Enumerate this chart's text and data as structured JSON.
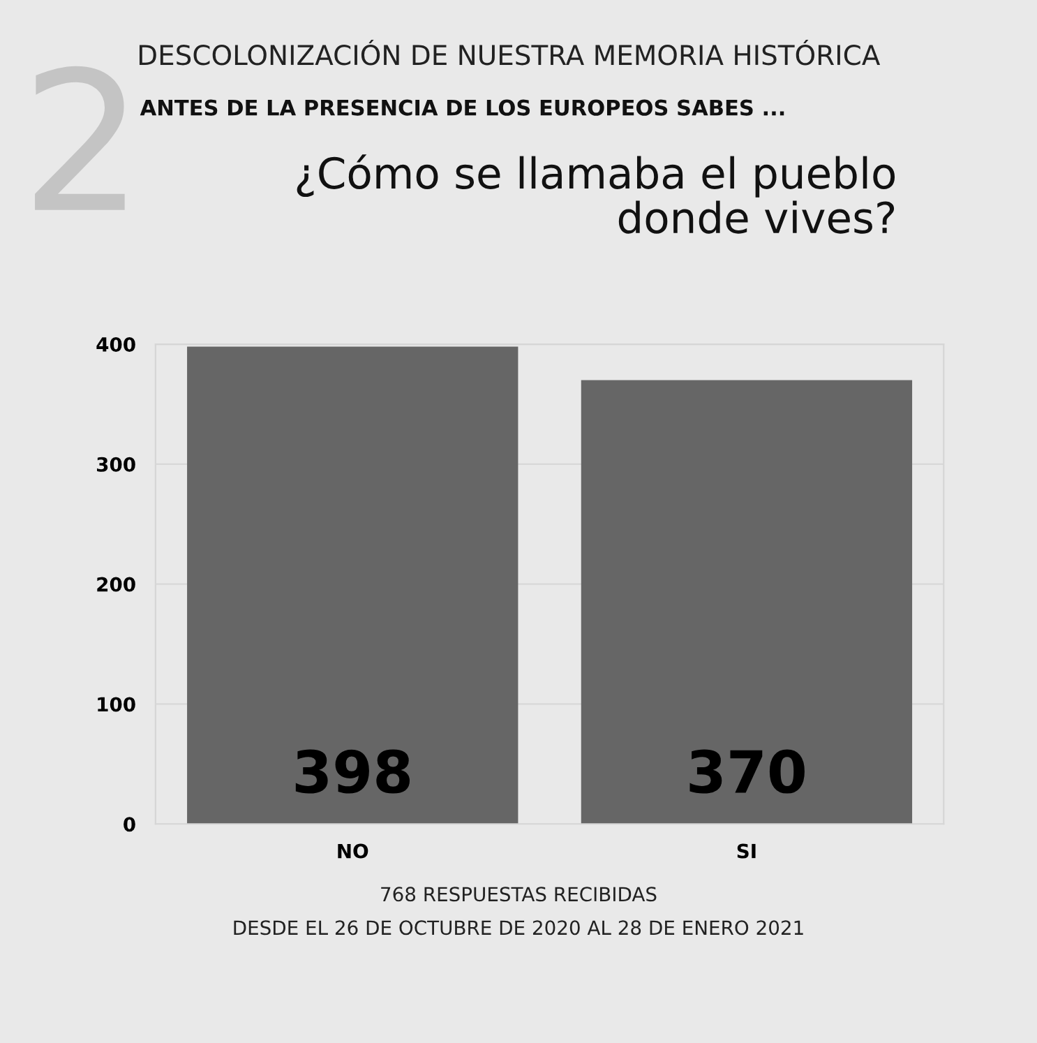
{
  "chart_data": {
    "type": "bar",
    "title": "DESCOLONIZACIÓN DE NUESTRA MEMORIA HISTÓRICA",
    "subtitle": "ANTES DE LA PRESENCIA DE LOS EUROPEOS SABES ...",
    "annotations": [
      "2",
      "¿Cómo se llamaba el pueblo\ndonde vives?",
      "768 RESPUESTAS RECIBIDAS\nDESDE EL 26 DE OCTUBRE DE 2020 AL 28 DE ENERO 2021"
    ],
    "categories": [
      "NO",
      "SI"
    ],
    "values": [
      398,
      370
    ],
    "color": "#666666",
    "ylim": [
      0,
      400
    ],
    "yticks": [
      0,
      100,
      200,
      300,
      400
    ],
    "grid": "y",
    "data_labels": true
  }
}
